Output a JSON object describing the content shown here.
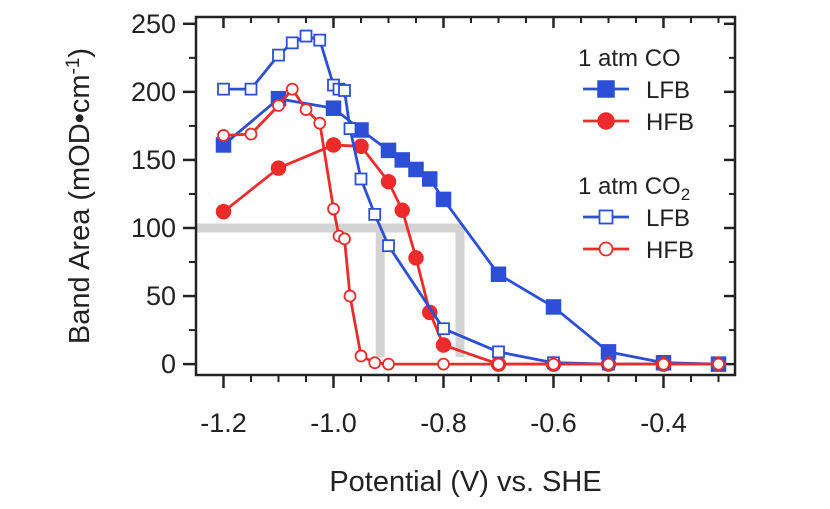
{
  "chart_data": {
    "type": "line",
    "xlabel": "Potential (V) vs. SHE",
    "ylabel_main": "Band Area (mOD•cm",
    "ylabel_sup": "-1",
    "ylabel_close": ")",
    "xlim": [
      -1.25,
      -0.27
    ],
    "ylim": [
      -8,
      255
    ],
    "x_ticks": [
      -1.2,
      -1.0,
      -0.8,
      -0.6,
      -0.4
    ],
    "x_tick_labels": [
      "-1.2",
      "-1.0",
      "-0.8",
      "-0.6",
      "-0.4"
    ],
    "y_ticks": [
      0,
      50,
      100,
      150,
      200,
      250
    ],
    "y_tick_labels": [
      "0",
      "50",
      "100",
      "150",
      "200",
      "250"
    ],
    "legend_groups": [
      {
        "title": "1 atm CO",
        "title_sub": ""
      },
      {
        "title": "1 atm CO",
        "title_sub": "2"
      }
    ],
    "series": [
      {
        "name": "LFB",
        "group": 0,
        "color": "#2c4fd6",
        "marker": "square",
        "filled": true,
        "x": [
          -1.2,
          -1.1,
          -1.0,
          -0.95,
          -0.9,
          -0.875,
          -0.85,
          -0.825,
          -0.8,
          -0.7,
          -0.6,
          -0.5,
          -0.4,
          -0.3
        ],
        "y": [
          161,
          195,
          188,
          172,
          157,
          150,
          143,
          136,
          121,
          66,
          42,
          9,
          1,
          0
        ]
      },
      {
        "name": "HFB",
        "group": 0,
        "color": "#ee2b2b",
        "marker": "circle",
        "filled": true,
        "x": [
          -1.2,
          -1.1,
          -1.0,
          -0.95,
          -0.9,
          -0.875,
          -0.85,
          -0.825,
          -0.8,
          -0.7,
          -0.6,
          -0.5,
          -0.4,
          -0.3
        ],
        "y": [
          112,
          144,
          161,
          160,
          134,
          113,
          78,
          38,
          14,
          0,
          0,
          0,
          0,
          0
        ]
      },
      {
        "name": "LFB",
        "group": 1,
        "color": "#2c4fd6",
        "marker": "square",
        "filled": false,
        "x": [
          -1.2,
          -1.15,
          -1.1,
          -1.075,
          -1.05,
          -1.025,
          -1.0,
          -0.99,
          -0.98,
          -0.97,
          -0.95,
          -0.925,
          -0.9,
          -0.8,
          -0.7,
          -0.6,
          -0.5,
          -0.4,
          -0.3
        ],
        "y": [
          202,
          202,
          227,
          236,
          241,
          238,
          205,
          202,
          201,
          173,
          136,
          110,
          87,
          26,
          9,
          1,
          0,
          0,
          0
        ]
      },
      {
        "name": "HFB",
        "group": 1,
        "color": "#ee2b2b",
        "marker": "circle",
        "filled": false,
        "x": [
          -1.2,
          -1.15,
          -1.1,
          -1.075,
          -1.05,
          -1.025,
          -1.0,
          -0.99,
          -0.98,
          -0.97,
          -0.95,
          -0.925,
          -0.9,
          -0.8,
          -0.7,
          -0.6,
          -0.5,
          -0.4,
          -0.3
        ],
        "y": [
          168,
          169,
          190,
          202,
          187,
          177,
          114,
          94,
          92,
          50,
          6,
          1,
          0,
          0,
          0,
          0,
          0,
          0,
          0
        ]
      }
    ],
    "reference_guides": {
      "color": "#d3d3d3",
      "horizontal_y": 100,
      "vertical_x": [
        -0.915,
        -0.77
      ]
    }
  }
}
